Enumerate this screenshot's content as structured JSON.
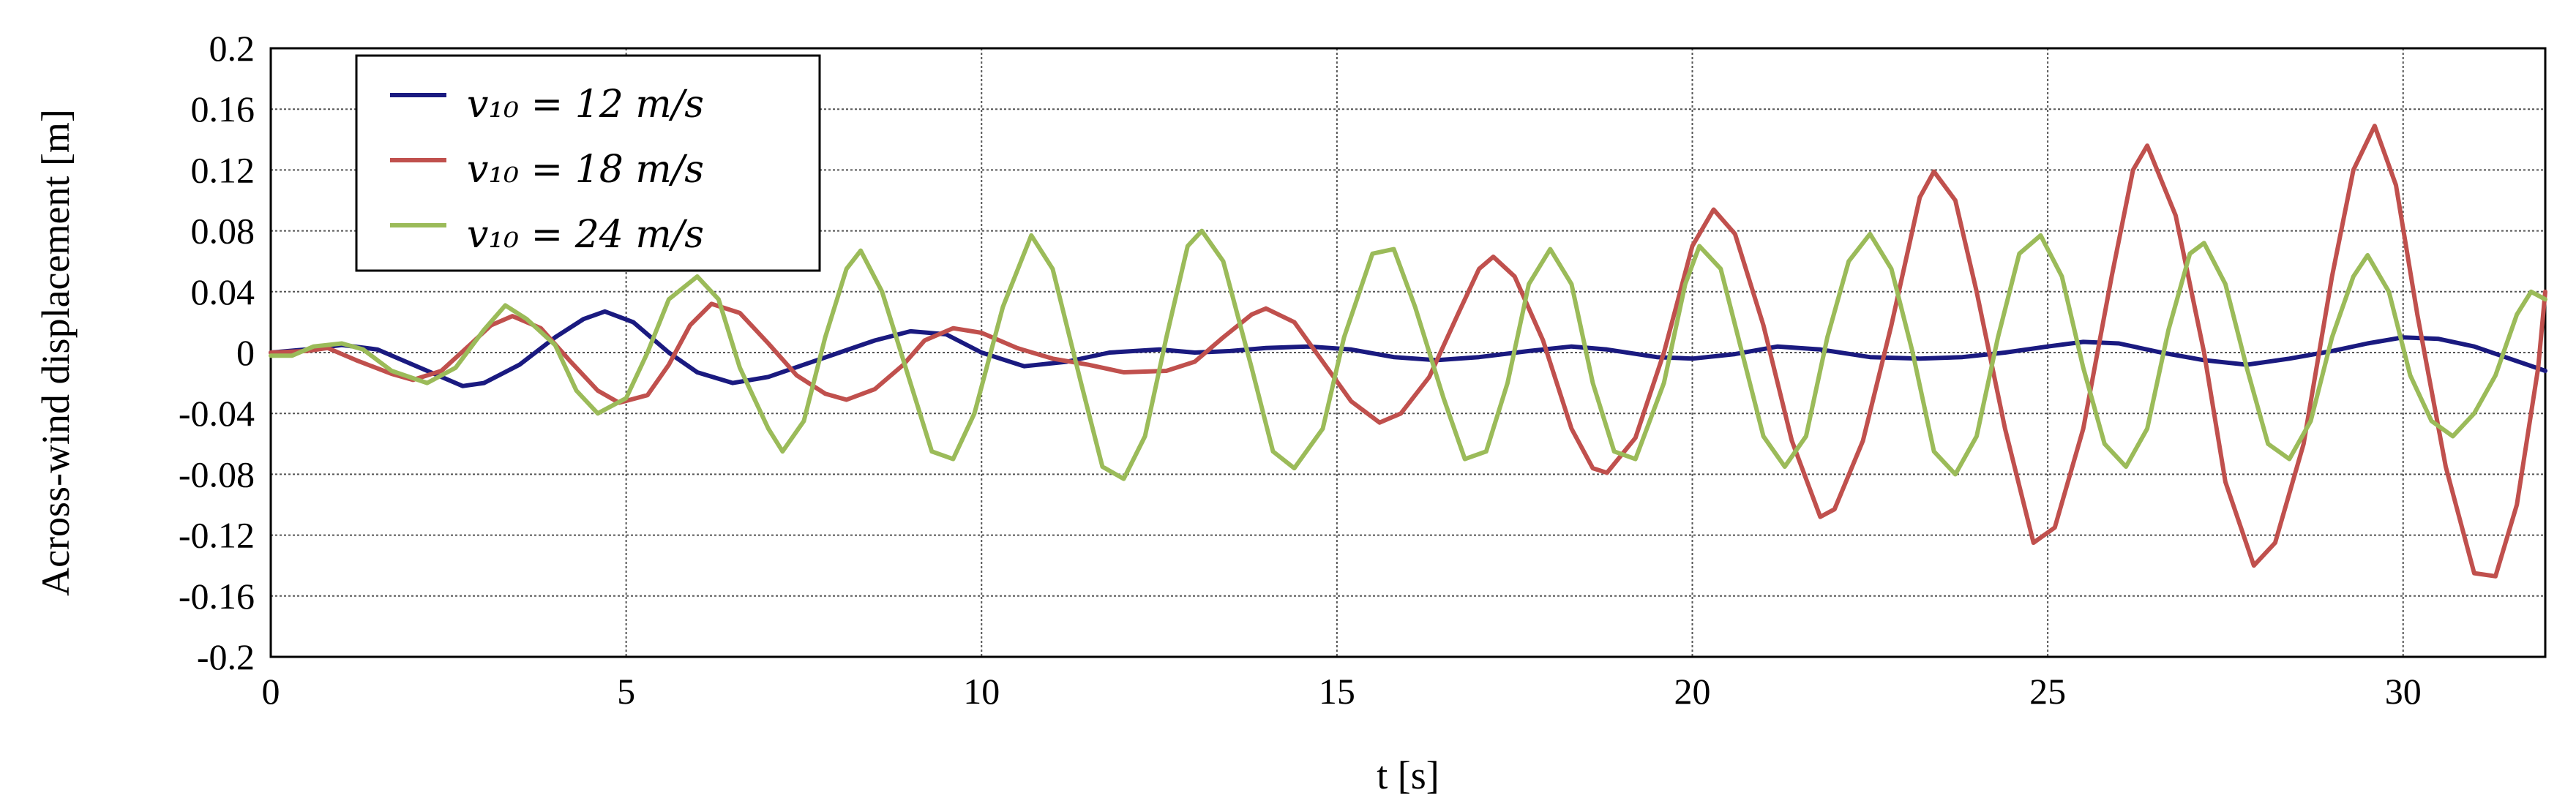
{
  "chart_data": {
    "type": "line",
    "xlabel": "t [s]",
    "ylabel": "Across-wind displacement  [m]",
    "xlim": [
      0,
      32
    ],
    "ylim": [
      -0.2,
      0.2
    ],
    "x_ticks": [
      0,
      5,
      10,
      15,
      20,
      25,
      30
    ],
    "x_tick_labels": [
      "0",
      "5",
      "10",
      "15",
      "20",
      "25",
      "30"
    ],
    "y_ticks": [
      0.2,
      0.16,
      0.12,
      0.08,
      0.04,
      0,
      -0.04,
      -0.08,
      -0.12,
      -0.16,
      -0.2
    ],
    "y_tick_labels": [
      "0.2",
      "0.16",
      "0.12",
      "0.08",
      "0.04",
      "0",
      "-0.04",
      "-0.08",
      "-0.12",
      "-0.16",
      "-0.2"
    ],
    "grid": true,
    "legend_position": "top-left",
    "series": [
      {
        "name": "v10 = 12 m/s",
        "legend_label": "v₁₀ = 12 m/s",
        "color": "#1a1a80",
        "points": [
          [
            0,
            0
          ],
          [
            0.5,
            0.002
          ],
          [
            1,
            0.005
          ],
          [
            1.5,
            0.002
          ],
          [
            2,
            -0.008
          ],
          [
            2.7,
            -0.022
          ],
          [
            3,
            -0.02
          ],
          [
            3.5,
            -0.008
          ],
          [
            4,
            0.01
          ],
          [
            4.4,
            0.022
          ],
          [
            4.7,
            0.027
          ],
          [
            5.1,
            0.02
          ],
          [
            5.6,
            0
          ],
          [
            6,
            -0.013
          ],
          [
            6.5,
            -0.02
          ],
          [
            7,
            -0.016
          ],
          [
            7.5,
            -0.008
          ],
          [
            8,
            0
          ],
          [
            8.5,
            0.008
          ],
          [
            9,
            0.014
          ],
          [
            9.5,
            0.012
          ],
          [
            10,
            0
          ],
          [
            10.6,
            -0.009
          ],
          [
            11.2,
            -0.006
          ],
          [
            11.8,
            0
          ],
          [
            12.5,
            0.002
          ],
          [
            13,
            0
          ],
          [
            13.5,
            0.001
          ],
          [
            14,
            0.003
          ],
          [
            14.6,
            0.004
          ],
          [
            15.2,
            0.002
          ],
          [
            15.8,
            -0.003
          ],
          [
            16.4,
            -0.005
          ],
          [
            17,
            -0.003
          ],
          [
            17.7,
            0.001
          ],
          [
            18.3,
            0.004
          ],
          [
            18.8,
            0.002
          ],
          [
            19.5,
            -0.003
          ],
          [
            20,
            -0.004
          ],
          [
            20.6,
            -0.001
          ],
          [
            21.2,
            0.004
          ],
          [
            21.8,
            0.002
          ],
          [
            22.5,
            -0.003
          ],
          [
            23.2,
            -0.004
          ],
          [
            23.8,
            -0.003
          ],
          [
            24.4,
            0
          ],
          [
            25,
            0.004
          ],
          [
            25.5,
            0.007
          ],
          [
            26,
            0.006
          ],
          [
            26.6,
            0
          ],
          [
            27.2,
            -0.005
          ],
          [
            27.8,
            -0.008
          ],
          [
            28.4,
            -0.004
          ],
          [
            29,
            0.001
          ],
          [
            29.5,
            0.006
          ],
          [
            30,
            0.01
          ],
          [
            30.5,
            0.009
          ],
          [
            31,
            0.004
          ],
          [
            31.5,
            -0.004
          ],
          [
            32,
            -0.012
          ]
        ]
      },
      {
        "name": "v10 = 18 m/s",
        "legend_label": "v₁₀ = 18 m/s",
        "color": "#c0504d",
        "points": [
          [
            0,
            0
          ],
          [
            0.5,
            0.001
          ],
          [
            0.8,
            0.003
          ],
          [
            1.2,
            -0.005
          ],
          [
            1.7,
            -0.014
          ],
          [
            2,
            -0.018
          ],
          [
            2.4,
            -0.012
          ],
          [
            2.8,
            0.005
          ],
          [
            3.1,
            0.018
          ],
          [
            3.4,
            0.024
          ],
          [
            3.8,
            0.016
          ],
          [
            4.2,
            -0.005
          ],
          [
            4.6,
            -0.025
          ],
          [
            4.9,
            -0.033
          ],
          [
            5.3,
            -0.028
          ],
          [
            5.6,
            -0.008
          ],
          [
            5.9,
            0.018
          ],
          [
            6.2,
            0.032
          ],
          [
            6.6,
            0.026
          ],
          [
            7,
            0.006
          ],
          [
            7.4,
            -0.015
          ],
          [
            7.8,
            -0.027
          ],
          [
            8.1,
            -0.031
          ],
          [
            8.5,
            -0.024
          ],
          [
            8.9,
            -0.008
          ],
          [
            9.2,
            0.008
          ],
          [
            9.6,
            0.016
          ],
          [
            10,
            0.013
          ],
          [
            10.5,
            0.003
          ],
          [
            11,
            -0.004
          ],
          [
            11.5,
            -0.008
          ],
          [
            12,
            -0.013
          ],
          [
            12.6,
            -0.012
          ],
          [
            13,
            -0.006
          ],
          [
            13.4,
            0.01
          ],
          [
            13.8,
            0.025
          ],
          [
            14,
            0.029
          ],
          [
            14.4,
            0.02
          ],
          [
            14.8,
            -0.006
          ],
          [
            15.2,
            -0.032
          ],
          [
            15.6,
            -0.046
          ],
          [
            15.9,
            -0.04
          ],
          [
            16.3,
            -0.016
          ],
          [
            16.7,
            0.025
          ],
          [
            17,
            0.055
          ],
          [
            17.2,
            0.063
          ],
          [
            17.5,
            0.05
          ],
          [
            17.9,
            0.008
          ],
          [
            18.3,
            -0.05
          ],
          [
            18.6,
            -0.076
          ],
          [
            18.8,
            -0.079
          ],
          [
            19.2,
            -0.056
          ],
          [
            19.6,
            0
          ],
          [
            20,
            0.07
          ],
          [
            20.3,
            0.094
          ],
          [
            20.6,
            0.078
          ],
          [
            21,
            0.018
          ],
          [
            21.4,
            -0.058
          ],
          [
            21.8,
            -0.108
          ],
          [
            22,
            -0.103
          ],
          [
            22.4,
            -0.058
          ],
          [
            22.8,
            0.018
          ],
          [
            23.2,
            0.102
          ],
          [
            23.4,
            0.119
          ],
          [
            23.7,
            0.1
          ],
          [
            24,
            0.04
          ],
          [
            24.4,
            -0.05
          ],
          [
            24.8,
            -0.125
          ],
          [
            25.1,
            -0.115
          ],
          [
            25.5,
            -0.05
          ],
          [
            25.9,
            0.05
          ],
          [
            26.2,
            0.12
          ],
          [
            26.4,
            0.136
          ],
          [
            26.8,
            0.09
          ],
          [
            27.2,
            0
          ],
          [
            27.5,
            -0.085
          ],
          [
            27.9,
            -0.14
          ],
          [
            28.2,
            -0.125
          ],
          [
            28.6,
            -0.06
          ],
          [
            29,
            0.05
          ],
          [
            29.3,
            0.12
          ],
          [
            29.6,
            0.149
          ],
          [
            29.9,
            0.11
          ],
          [
            30.2,
            0.025
          ],
          [
            30.6,
            -0.075
          ],
          [
            31,
            -0.145
          ],
          [
            31.3,
            -0.147
          ],
          [
            31.6,
            -0.1
          ],
          [
            31.9,
            -0.01
          ],
          [
            32,
            0.04
          ]
        ]
      },
      {
        "name": "v10 = 24 m/s",
        "legend_label": "v₁₀ = 24 m/s",
        "color": "#9bbb59",
        "points": [
          [
            0,
            -0.002
          ],
          [
            0.3,
            -0.002
          ],
          [
            0.6,
            0.004
          ],
          [
            1,
            0.006
          ],
          [
            1.3,
            0.002
          ],
          [
            1.7,
            -0.012
          ],
          [
            2.2,
            -0.02
          ],
          [
            2.6,
            -0.01
          ],
          [
            3,
            0.015
          ],
          [
            3.3,
            0.031
          ],
          [
            3.6,
            0.022
          ],
          [
            4,
            0.005
          ],
          [
            4.3,
            -0.025
          ],
          [
            4.6,
            -0.04
          ],
          [
            5,
            -0.03
          ],
          [
            5.3,
            0
          ],
          [
            5.6,
            0.035
          ],
          [
            6,
            0.05
          ],
          [
            6.3,
            0.035
          ],
          [
            6.6,
            -0.01
          ],
          [
            7,
            -0.05
          ],
          [
            7.2,
            -0.065
          ],
          [
            7.5,
            -0.045
          ],
          [
            7.8,
            0.01
          ],
          [
            8.1,
            0.055
          ],
          [
            8.3,
            0.067
          ],
          [
            8.6,
            0.04
          ],
          [
            9,
            -0.02
          ],
          [
            9.3,
            -0.065
          ],
          [
            9.6,
            -0.07
          ],
          [
            9.9,
            -0.04
          ],
          [
            10.3,
            0.03
          ],
          [
            10.7,
            0.077
          ],
          [
            11,
            0.055
          ],
          [
            11.4,
            -0.02
          ],
          [
            11.7,
            -0.075
          ],
          [
            12,
            -0.083
          ],
          [
            12.3,
            -0.055
          ],
          [
            12.6,
            0.01
          ],
          [
            12.9,
            0.07
          ],
          [
            13.1,
            0.08
          ],
          [
            13.4,
            0.06
          ],
          [
            13.8,
            -0.01
          ],
          [
            14.1,
            -0.065
          ],
          [
            14.4,
            -0.076
          ],
          [
            14.8,
            -0.05
          ],
          [
            15.1,
            0.01
          ],
          [
            15.5,
            0.065
          ],
          [
            15.8,
            0.068
          ],
          [
            16.1,
            0.03
          ],
          [
            16.5,
            -0.03
          ],
          [
            16.8,
            -0.07
          ],
          [
            17.1,
            -0.065
          ],
          [
            17.4,
            -0.02
          ],
          [
            17.7,
            0.045
          ],
          [
            18,
            0.068
          ],
          [
            18.3,
            0.045
          ],
          [
            18.6,
            -0.02
          ],
          [
            18.9,
            -0.065
          ],
          [
            19.2,
            -0.07
          ],
          [
            19.6,
            -0.02
          ],
          [
            19.9,
            0.045
          ],
          [
            20.1,
            0.07
          ],
          [
            20.4,
            0.055
          ],
          [
            20.7,
            0
          ],
          [
            21,
            -0.055
          ],
          [
            21.3,
            -0.075
          ],
          [
            21.6,
            -0.055
          ],
          [
            21.9,
            0.01
          ],
          [
            22.2,
            0.06
          ],
          [
            22.5,
            0.078
          ],
          [
            22.8,
            0.055
          ],
          [
            23.1,
            0
          ],
          [
            23.4,
            -0.065
          ],
          [
            23.7,
            -0.08
          ],
          [
            24,
            -0.055
          ],
          [
            24.3,
            0.01
          ],
          [
            24.6,
            0.065
          ],
          [
            24.9,
            0.077
          ],
          [
            25.2,
            0.05
          ],
          [
            25.5,
            -0.01
          ],
          [
            25.8,
            -0.06
          ],
          [
            26.1,
            -0.075
          ],
          [
            26.4,
            -0.05
          ],
          [
            26.7,
            0.015
          ],
          [
            27,
            0.065
          ],
          [
            27.2,
            0.072
          ],
          [
            27.5,
            0.045
          ],
          [
            27.8,
            -0.01
          ],
          [
            28.1,
            -0.06
          ],
          [
            28.4,
            -0.07
          ],
          [
            28.7,
            -0.045
          ],
          [
            29,
            0.01
          ],
          [
            29.3,
            0.05
          ],
          [
            29.5,
            0.064
          ],
          [
            29.8,
            0.04
          ],
          [
            30.1,
            -0.015
          ],
          [
            30.4,
            -0.045
          ],
          [
            30.7,
            -0.055
          ],
          [
            31,
            -0.04
          ],
          [
            31.3,
            -0.015
          ],
          [
            31.6,
            0.025
          ],
          [
            31.8,
            0.04
          ],
          [
            32,
            0.035
          ]
        ]
      }
    ]
  }
}
